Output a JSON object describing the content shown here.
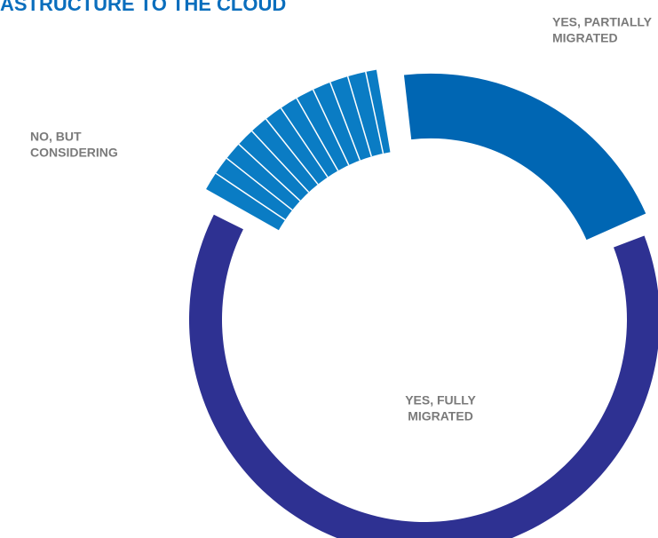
{
  "chart_data": {
    "type": "donut",
    "title": "ASTRUCTURE TO THE CLOUD",
    "categories": [
      [
        "YES, PARTIALLY",
        "MIGRATED"
      ],
      [
        "YES, FULLY",
        "MIGRATED"
      ],
      [
        "NO, BUT",
        "CONSIDERING"
      ]
    ],
    "values": [
      21,
      64,
      15
    ],
    "colors": [
      "#0066b3",
      "#2e3192",
      "#0a7cc4"
    ]
  }
}
